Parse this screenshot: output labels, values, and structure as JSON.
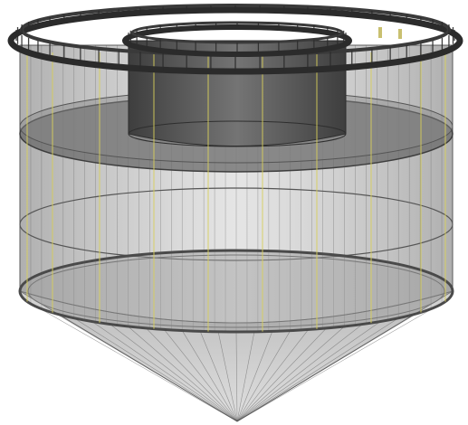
{
  "figure": {
    "subject": "",
    "components": [
      {
        "name": "outer-float-collar",
        "icon": "ring-icon"
      },
      {
        "name": "inner-float-collar",
        "icon": "ring-icon"
      },
      {
        "name": "inner-cylindrical-net",
        "icon": "cylinder-icon"
      },
      {
        "name": "middle-disc-ring",
        "icon": "disc-icon"
      },
      {
        "name": "outer-net-wall",
        "icon": "net-icon"
      },
      {
        "name": "lower-sinker-ring",
        "icon": "ring-icon"
      },
      {
        "name": "conical-net-bottom",
        "icon": "cone-icon"
      },
      {
        "name": "vertical-rope",
        "icon": "rope-icon"
      }
    ]
  },
  "colors": {
    "background": "#ffffff",
    "collar_dark": "#2b2b2b",
    "collar_mid": "#4a4a4a",
    "net_fill": "#8a8a8a",
    "net_line": "#6e6e6e",
    "inner_cylinder": "#5c5c5c",
    "disc": "#6a6a6a",
    "rope_yellow": "#d8cf5a",
    "cone_fill": "#9a9a9a"
  }
}
